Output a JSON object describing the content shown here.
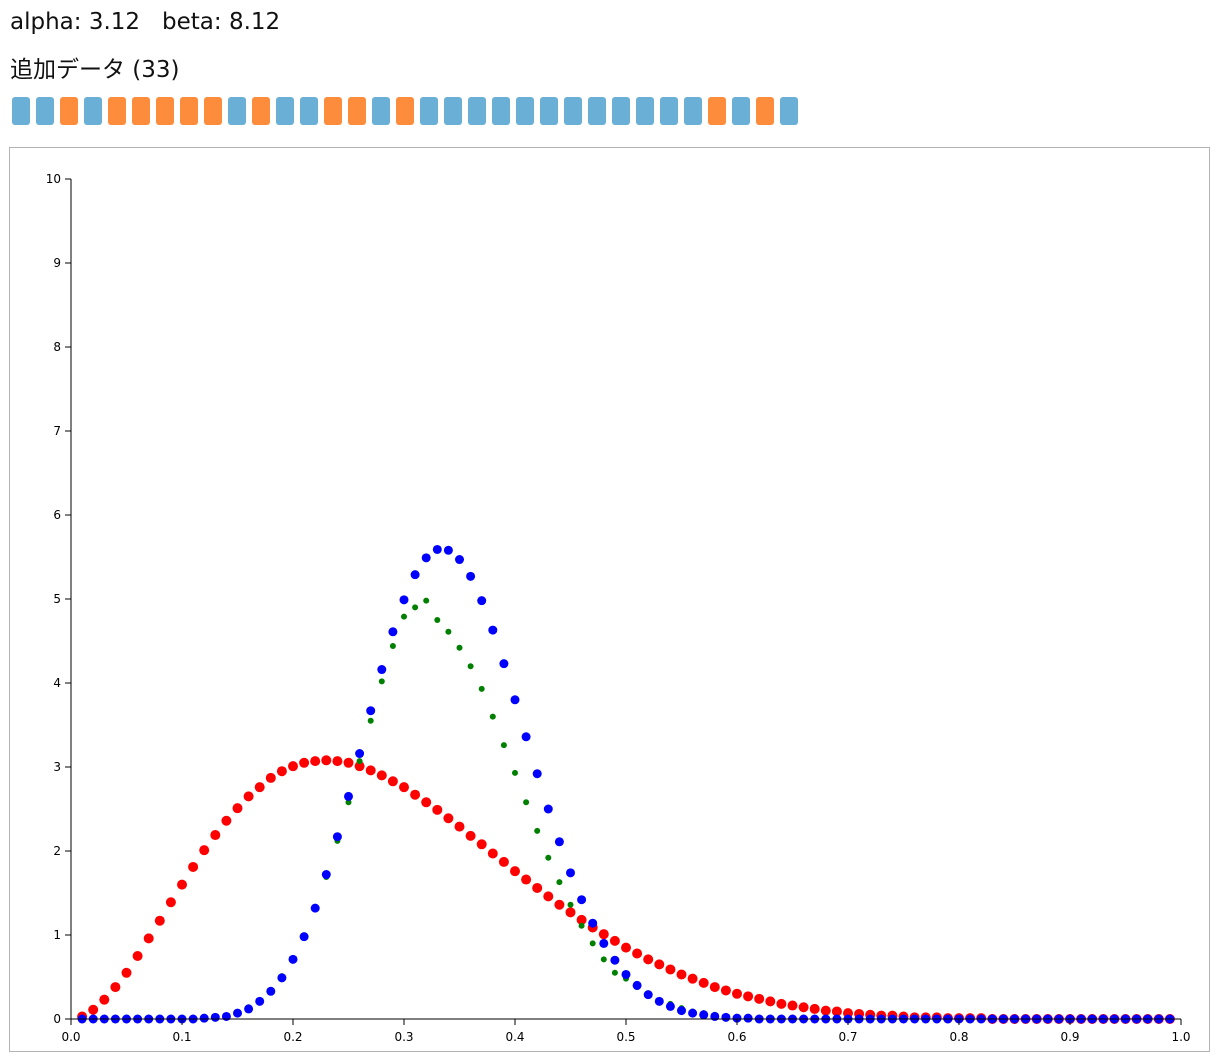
{
  "params": {
    "alpha_text": "alpha: 3.12",
    "beta_text": "beta: 8.12"
  },
  "added_data": {
    "title": "追加データ (33)",
    "outcomes": [
      0,
      0,
      1,
      0,
      1,
      1,
      1,
      1,
      1,
      0,
      1,
      0,
      0,
      1,
      1,
      0,
      1,
      0,
      0,
      0,
      0,
      0,
      0,
      0,
      0,
      0,
      0,
      0,
      0,
      1,
      0,
      1,
      0
    ]
  },
  "colors": {
    "success_chip": "#fd8d3c",
    "failure_chip": "#6aafd6",
    "prior": "#ff0000",
    "likelihood": "#008000",
    "posterior": "#0000ff"
  },
  "chart_data": {
    "type": "scatter",
    "title": "",
    "xlabel": "",
    "ylabel": "",
    "xlim": [
      0,
      1
    ],
    "ylim": [
      0,
      10
    ],
    "x_ticks": [
      "0.0",
      "0.1",
      "0.2",
      "0.3",
      "0.4",
      "0.5",
      "0.6",
      "0.7",
      "0.8",
      "0.9",
      "1.0"
    ],
    "y_ticks": [
      "0",
      "1",
      "2",
      "3",
      "4",
      "5",
      "6",
      "7",
      "8",
      "9",
      "10"
    ],
    "grid": false,
    "x": [
      0.01,
      0.02,
      0.03,
      0.04,
      0.05,
      0.06,
      0.07,
      0.08,
      0.09,
      0.1,
      0.11,
      0.12,
      0.13,
      0.14,
      0.15,
      0.16,
      0.17,
      0.18,
      0.19,
      0.2,
      0.21,
      0.22,
      0.23,
      0.24,
      0.25,
      0.26,
      0.27,
      0.28,
      0.29,
      0.3,
      0.31,
      0.32,
      0.33,
      0.34,
      0.35,
      0.36,
      0.37,
      0.38,
      0.39,
      0.4,
      0.41,
      0.42,
      0.43,
      0.44,
      0.45,
      0.46,
      0.47,
      0.48,
      0.49,
      0.5,
      0.51,
      0.52,
      0.53,
      0.54,
      0.55,
      0.56,
      0.57,
      0.58,
      0.59,
      0.6,
      0.61,
      0.62,
      0.63,
      0.64,
      0.65,
      0.66,
      0.67,
      0.68,
      0.69,
      0.7,
      0.71,
      0.72,
      0.73,
      0.74,
      0.75,
      0.76,
      0.77,
      0.78,
      0.79,
      0.8,
      0.81,
      0.82,
      0.83,
      0.84,
      0.85,
      0.86,
      0.87,
      0.88,
      0.89,
      0.9,
      0.91,
      0.92,
      0.93,
      0.94,
      0.95,
      0.96,
      0.97,
      0.98,
      0.99
    ],
    "series": [
      {
        "color": "#ff0000",
        "radius": 5,
        "values": [
          0.03,
          0.11,
          0.23,
          0.38,
          0.55,
          0.75,
          0.96,
          1.17,
          1.39,
          1.6,
          1.81,
          2.01,
          2.19,
          2.36,
          2.51,
          2.65,
          2.76,
          2.87,
          2.95,
          3.01,
          3.05,
          3.07,
          3.08,
          3.07,
          3.05,
          3.01,
          2.96,
          2.9,
          2.83,
          2.76,
          2.67,
          2.58,
          2.49,
          2.39,
          2.29,
          2.18,
          2.08,
          1.97,
          1.87,
          1.76,
          1.66,
          1.56,
          1.46,
          1.36,
          1.27,
          1.18,
          1.09,
          1.01,
          0.93,
          0.85,
          0.78,
          0.71,
          0.65,
          0.59,
          0.53,
          0.48,
          0.43,
          0.38,
          0.34,
          0.3,
          0.27,
          0.24,
          0.21,
          0.18,
          0.16,
          0.14,
          0.12,
          0.1,
          0.09,
          0.07,
          0.06,
          0.05,
          0.04,
          0.04,
          0.03,
          0.02,
          0.02,
          0.02,
          0.01,
          0.01,
          0.01,
          0.01,
          0.0,
          0.0,
          0.0,
          0.0,
          0.0,
          0.0,
          0.0,
          0.0,
          0.0,
          0.0,
          0.0,
          0.0,
          0.0,
          0.0,
          0.0,
          0.0,
          0.0
        ]
      },
      {
        "color": "#008000",
        "radius": 3,
        "values": [
          0.0,
          0.0,
          0.0,
          0.0,
          0.0,
          0.0,
          0.0,
          0.0,
          0.0,
          0.0,
          0.0,
          0.01,
          0.02,
          0.04,
          0.08,
          0.14,
          0.22,
          0.34,
          0.51,
          0.72,
          0.99,
          1.31,
          1.69,
          2.12,
          2.58,
          3.07,
          3.55,
          4.02,
          4.44,
          4.79,
          4.9,
          4.98,
          4.75,
          4.61,
          4.42,
          4.2,
          3.93,
          3.6,
          3.26,
          2.93,
          2.58,
          2.24,
          1.92,
          1.63,
          1.36,
          1.11,
          0.9,
          0.71,
          0.55,
          0.48,
          0.38,
          0.3,
          0.22,
          0.18,
          0.13,
          0.09,
          0.07,
          0.05,
          0.03,
          0.02,
          0.01,
          0.01,
          0.01,
          0.0,
          0.0,
          0.0,
          0.0,
          0.0,
          0.0,
          0.0,
          0.0,
          0.0,
          0.0,
          0.0,
          0.0,
          0.0,
          0.0,
          0.0,
          0.0,
          0.0,
          0.0,
          0.0,
          0.0,
          0.0,
          0.0,
          0.0,
          0.0,
          0.0,
          0.0,
          0.0,
          0.0,
          0.0,
          0.0,
          0.0,
          0.0,
          0.0,
          0.0,
          0.0,
          0.0
        ]
      },
      {
        "color": "#0000ff",
        "radius": 4.5,
        "values": [
          0.0,
          0.0,
          0.0,
          0.0,
          0.0,
          0.0,
          0.0,
          0.0,
          0.0,
          0.0,
          0.0,
          0.01,
          0.02,
          0.03,
          0.07,
          0.12,
          0.21,
          0.33,
          0.49,
          0.71,
          0.98,
          1.32,
          1.72,
          2.17,
          2.65,
          3.16,
          3.67,
          4.16,
          4.61,
          4.99,
          5.29,
          5.49,
          5.59,
          5.58,
          5.47,
          5.27,
          4.98,
          4.63,
          4.23,
          3.8,
          3.36,
          2.92,
          2.5,
          2.11,
          1.74,
          1.42,
          1.14,
          0.9,
          0.7,
          0.53,
          0.4,
          0.29,
          0.21,
          0.15,
          0.1,
          0.07,
          0.05,
          0.03,
          0.02,
          0.01,
          0.01,
          0.0,
          0.0,
          0.0,
          0.0,
          0.0,
          0.0,
          0.0,
          0.0,
          0.0,
          0.0,
          0.0,
          0.0,
          0.0,
          0.0,
          0.0,
          0.0,
          0.0,
          0.0,
          0.0,
          0.0,
          0.0,
          0.0,
          0.0,
          0.0,
          0.0,
          0.0,
          0.0,
          0.0,
          0.0,
          0.0,
          0.0,
          0.0,
          0.0,
          0.0,
          0.0,
          0.0,
          0.0,
          0.0
        ]
      }
    ]
  }
}
